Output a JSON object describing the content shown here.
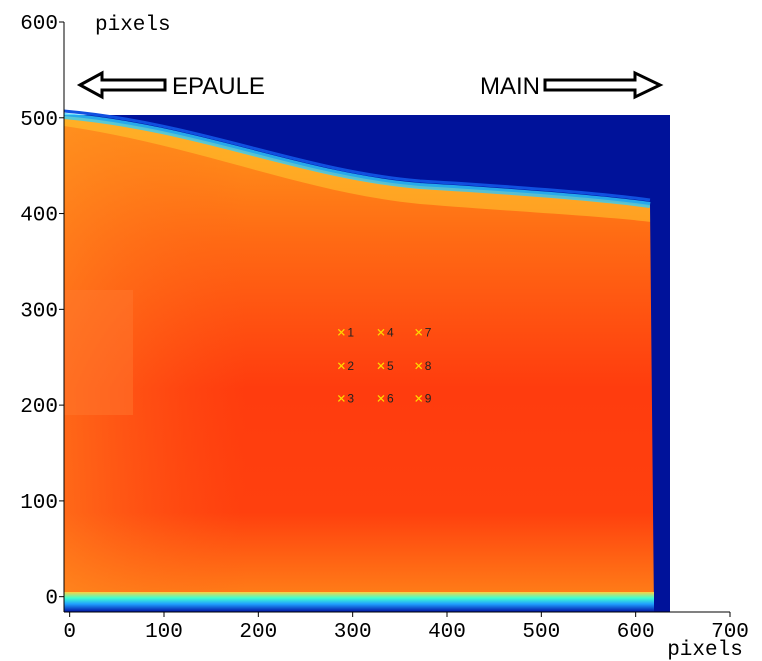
{
  "chart_data": {
    "type": "scatter",
    "x_label": "pixels",
    "y_label": "pixels",
    "annotations": [
      "EPAULE",
      "MAIN"
    ],
    "x": [
      288,
      288,
      288,
      330,
      330,
      330,
      370,
      370,
      370
    ],
    "y": [
      276,
      241,
      207,
      276,
      241,
      207,
      276,
      241,
      207
    ],
    "point_labels": [
      "1",
      "2",
      "3",
      "4",
      "5",
      "6",
      "7",
      "8",
      "9"
    ],
    "color": "#ffd700",
    "xlim": [
      -6,
      700
    ],
    "ylim": [
      -16,
      600
    ],
    "xticks": [
      0,
      100,
      200,
      300,
      400,
      500,
      600,
      700
    ],
    "yticks": [
      0,
      100,
      200,
      300,
      400,
      500,
      600
    ]
  }
}
